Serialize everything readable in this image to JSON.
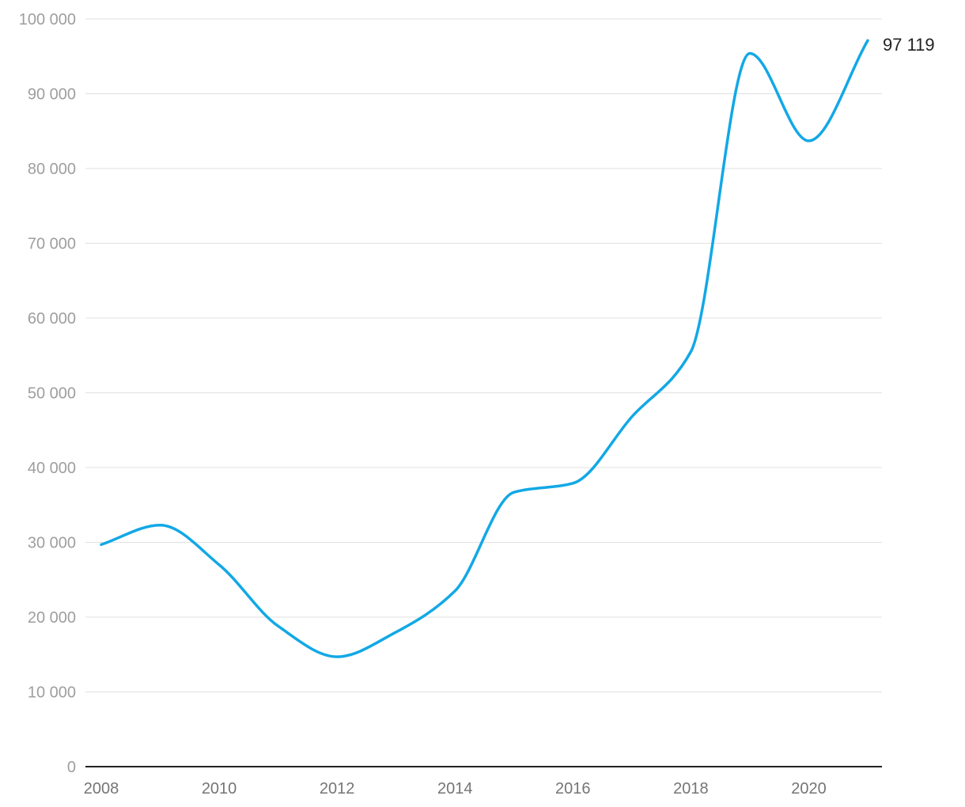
{
  "chart_data": {
    "type": "line",
    "x": [
      2008,
      2009,
      2010,
      2011,
      2012,
      2013,
      2014,
      2015,
      2016,
      2017,
      2018,
      2019,
      2020,
      2021
    ],
    "series": [
      {
        "values": [
          29700,
          32300,
          27000,
          18800,
          14700,
          18000,
          23500,
          36700,
          37900,
          46800,
          55500,
          95400,
          83700,
          97119
        ],
        "color": "#12a8e6"
      }
    ],
    "y_ticks": [
      0,
      10000,
      20000,
      30000,
      40000,
      50000,
      60000,
      70000,
      80000,
      90000,
      100000
    ],
    "y_tick_labels": [
      "0",
      "10 000",
      "20 000",
      "30 000",
      "40 000",
      "50 000",
      "60 000",
      "70 000",
      "80 000",
      "90 000",
      "100 000"
    ],
    "x_ticks": [
      2008,
      2010,
      2012,
      2014,
      2016,
      2018,
      2020
    ],
    "x_tick_labels": [
      "2008",
      "2010",
      "2012",
      "2014",
      "2016",
      "2018",
      "2020"
    ],
    "ylim": [
      0,
      100000
    ],
    "xlim": [
      2008,
      2021
    ],
    "end_label": "97 119",
    "title": "",
    "xlabel": "",
    "ylabel": "",
    "grid": true,
    "legend": "none"
  }
}
